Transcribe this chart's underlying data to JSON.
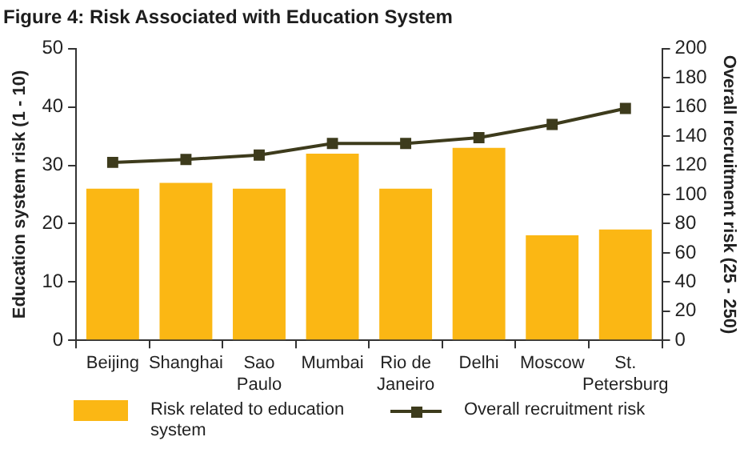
{
  "chart_data": {
    "type": "bar",
    "title": "Figure 4: Risk Associated with Education System",
    "ylabel": "Education system risk (1 - 10)",
    "y2label": "Overall recruitment risk (25 - 250)",
    "categories": [
      "Beijing",
      "Shanghai",
      "Sao Paulo",
      "Mumbai",
      "Rio de Janeiro",
      "Delhi",
      "Moscow",
      "St. Petersburg"
    ],
    "series": [
      {
        "name": "Risk related to education system",
        "color": "#fbb714",
        "values": [
          26,
          27,
          26,
          32,
          26,
          33,
          18,
          19
        ]
      },
      {
        "name": "Overall recruitment risk",
        "type": "line",
        "axis": "y2",
        "color": "#3d3b1c",
        "marker": "square",
        "values": [
          122,
          124,
          127,
          135,
          135,
          139,
          148,
          159
        ]
      }
    ],
    "ylim": [
      0,
      50
    ],
    "yticks": [
      0,
      10,
      20,
      30,
      40,
      50
    ],
    "y2lim": [
      0,
      200
    ],
    "y2ticks": [
      0,
      20,
      40,
      60,
      80,
      100,
      120,
      140,
      160,
      180,
      200
    ],
    "grid": false,
    "legend": "bottom"
  }
}
